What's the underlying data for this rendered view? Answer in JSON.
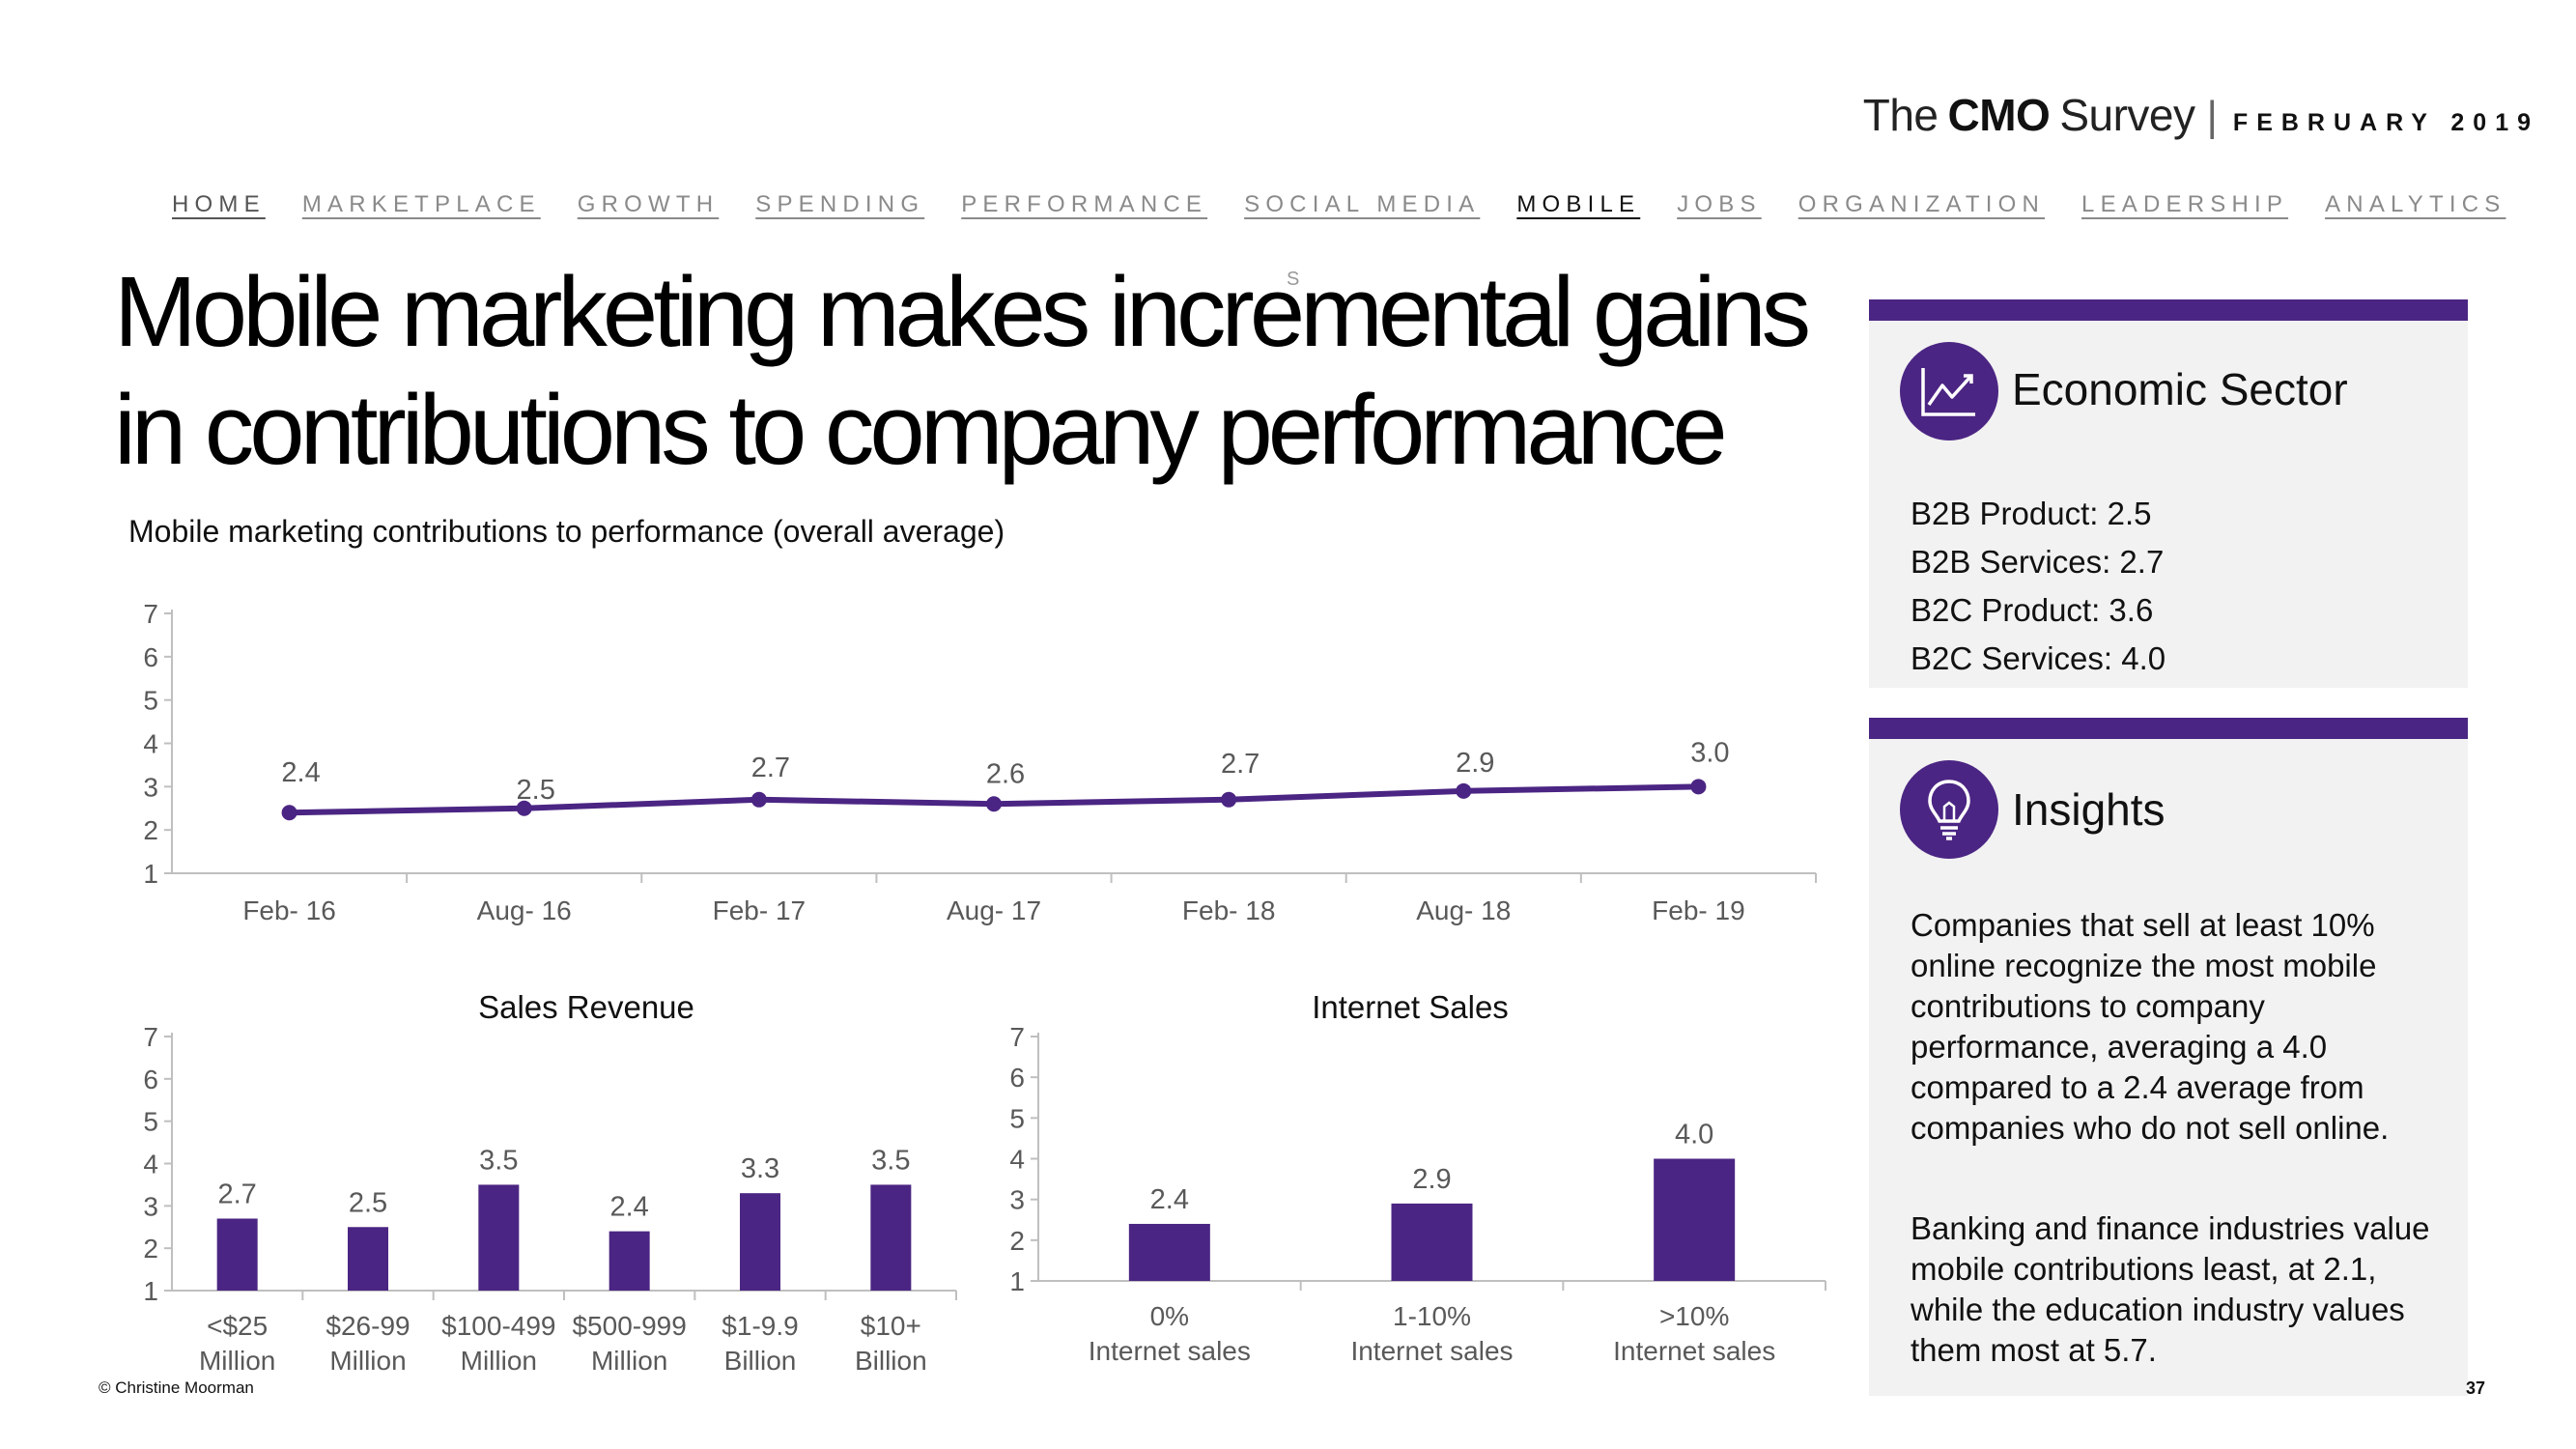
{
  "brand": {
    "the": "The",
    "cmo": "CMO",
    "survey": "Survey",
    "separator": "|",
    "date": "FEBRUARY 2019"
  },
  "nav": {
    "items": [
      {
        "label": "HOME"
      },
      {
        "label": "MARKETPLACE"
      },
      {
        "label": "GROWTH"
      },
      {
        "label": "SPENDING"
      },
      {
        "label": "PERFORMANCE"
      },
      {
        "label": "SOCIAL MEDIA"
      },
      {
        "label": "MOBILE"
      },
      {
        "label": "JOBS"
      },
      {
        "label": "ORGANIZATION"
      },
      {
        "label": "LEADERSHIP"
      },
      {
        "label": "ANALYTICS"
      }
    ],
    "active": "MOBILE"
  },
  "title": "Mobile marketing makes incremental gains in contributions to company performance",
  "stray_mark": "S",
  "colors": {
    "accent": "#4b2583",
    "panel_bg": "#f2f2f2",
    "axis": "#bfbfbf",
    "tick_text": "#595959"
  },
  "chart_data": [
    {
      "type": "line",
      "title": "Mobile marketing contributions to performance (overall average)",
      "categories": [
        "Feb- 16",
        "Aug- 16",
        "Feb- 17",
        "Aug- 17",
        "Feb- 18",
        "Aug- 18",
        "Feb- 19"
      ],
      "values": [
        2.4,
        2.5,
        2.7,
        2.6,
        2.7,
        2.9,
        3.0
      ],
      "data_labels": [
        "2.4",
        "2.5",
        "2.7",
        "2.6",
        "2.7",
        "2.9",
        "3.0"
      ],
      "ylim": [
        1,
        7
      ],
      "yticks": [
        "1",
        "2",
        "3",
        "4",
        "5",
        "6",
        "7"
      ]
    },
    {
      "type": "bar",
      "title": "Sales Revenue",
      "categories": [
        [
          "<$25",
          "Million"
        ],
        [
          "$26-99",
          "Million"
        ],
        [
          "$100-499",
          "Million"
        ],
        [
          "$500-999",
          "Million"
        ],
        [
          "$1-9.9",
          "Billion"
        ],
        [
          "$10+",
          "Billion"
        ]
      ],
      "values": [
        2.7,
        2.5,
        3.5,
        2.4,
        3.3,
        3.5
      ],
      "data_labels": [
        "2.7",
        "2.5",
        "3.5",
        "2.4",
        "3.3",
        "3.5"
      ],
      "ylim": [
        1,
        7
      ],
      "yticks": [
        "1",
        "2",
        "3",
        "4",
        "5",
        "6",
        "7"
      ]
    },
    {
      "type": "bar",
      "title": "Internet Sales",
      "categories": [
        [
          "0%",
          "Internet sales"
        ],
        [
          "1-10%",
          "Internet sales"
        ],
        [
          ">10%",
          "Internet sales"
        ]
      ],
      "values": [
        2.4,
        2.9,
        4.0
      ],
      "data_labels": [
        "2.4",
        "2.9",
        "4.0"
      ],
      "ylim": [
        1,
        7
      ],
      "yticks": [
        "1",
        "2",
        "3",
        "4",
        "5",
        "6",
        "7"
      ]
    }
  ],
  "sector": {
    "icon": "line-chart-icon",
    "heading": "Economic Sector",
    "items": [
      "B2B Product: 2.5",
      "B2B Services: 2.7",
      "B2C Product: 3.6",
      "B2C Services: 4.0"
    ]
  },
  "insights": {
    "icon": "lightbulb-icon",
    "heading": "Insights",
    "paragraphs": [
      "Companies that sell at least 10% online recognize the most mobile contributions to company performance, averaging a 4.0 compared to a 2.4 average from companies who do not sell online.",
      "Banking and finance industries value mobile contributions least, at 2.1, while the education industry values them most at 5.7."
    ]
  },
  "footer": {
    "copyright": "© Christine Moorman",
    "page_number": "37"
  }
}
